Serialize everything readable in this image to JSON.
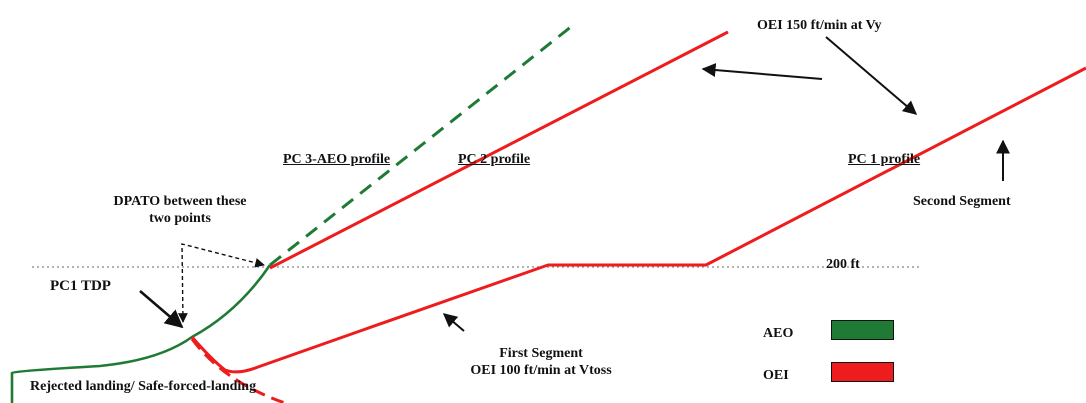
{
  "labels": {
    "oei_vy": "OEI 150 ft/min at Vy",
    "pc3_aeo": "PC 3-AEO profile",
    "pc2": "PC 2 profile",
    "pc1": "PC 1 profile",
    "second_segment": "Second Segment",
    "dpato_line1": "DPATO between these",
    "dpato_line2": "two points",
    "height_200": "200 ft",
    "pc1_tdp": "PC1 TDP",
    "first_segment_line1": "First Segment",
    "first_segment_line2": "OEI 100 ft/min at Vtoss",
    "rejected_landing": "Rejected landing/ Safe-forced-landing"
  },
  "legend": [
    {
      "label": "AEO",
      "color": "#1e7a34"
    },
    {
      "label": "OEI",
      "color": "#ee1c1c"
    }
  ],
  "colors": {
    "aeo": "#1e7a34",
    "oei": "#ee1c1c",
    "reference_line": "#9a9a9a",
    "arrow": "#111111"
  }
}
